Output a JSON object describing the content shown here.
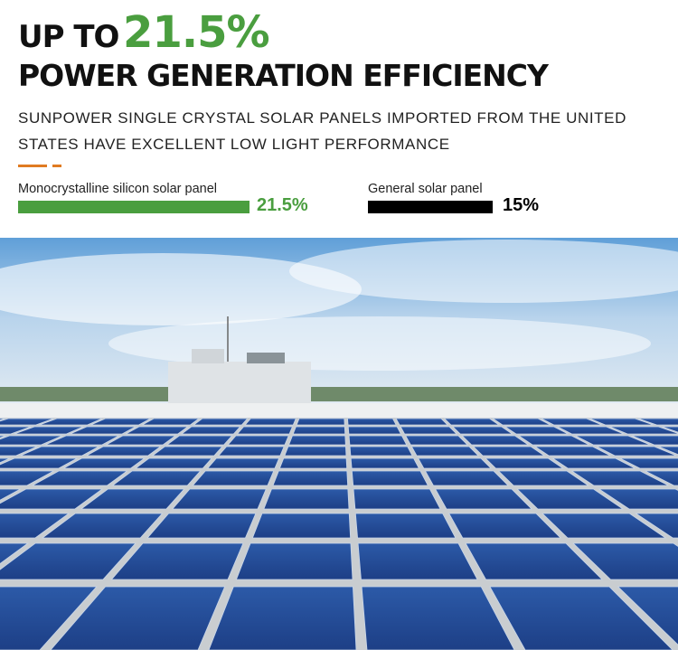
{
  "header": {
    "lead": "UP TO",
    "highlight": "21.5%",
    "title": "POWER GENERATION EFFICIENCY",
    "subtitle": "SUNPOWER SINGLE CRYSTAL SOLAR PANELS IMPORTED FROM THE UNITED STATES HAVE EXCELLENT LOW LIGHT PERFORMANCE"
  },
  "comparison": [
    {
      "label": "Monocrystalline silicon solar panel",
      "value": "21.5%"
    },
    {
      "label": "General solar panel",
      "value": "15%"
    }
  ]
}
